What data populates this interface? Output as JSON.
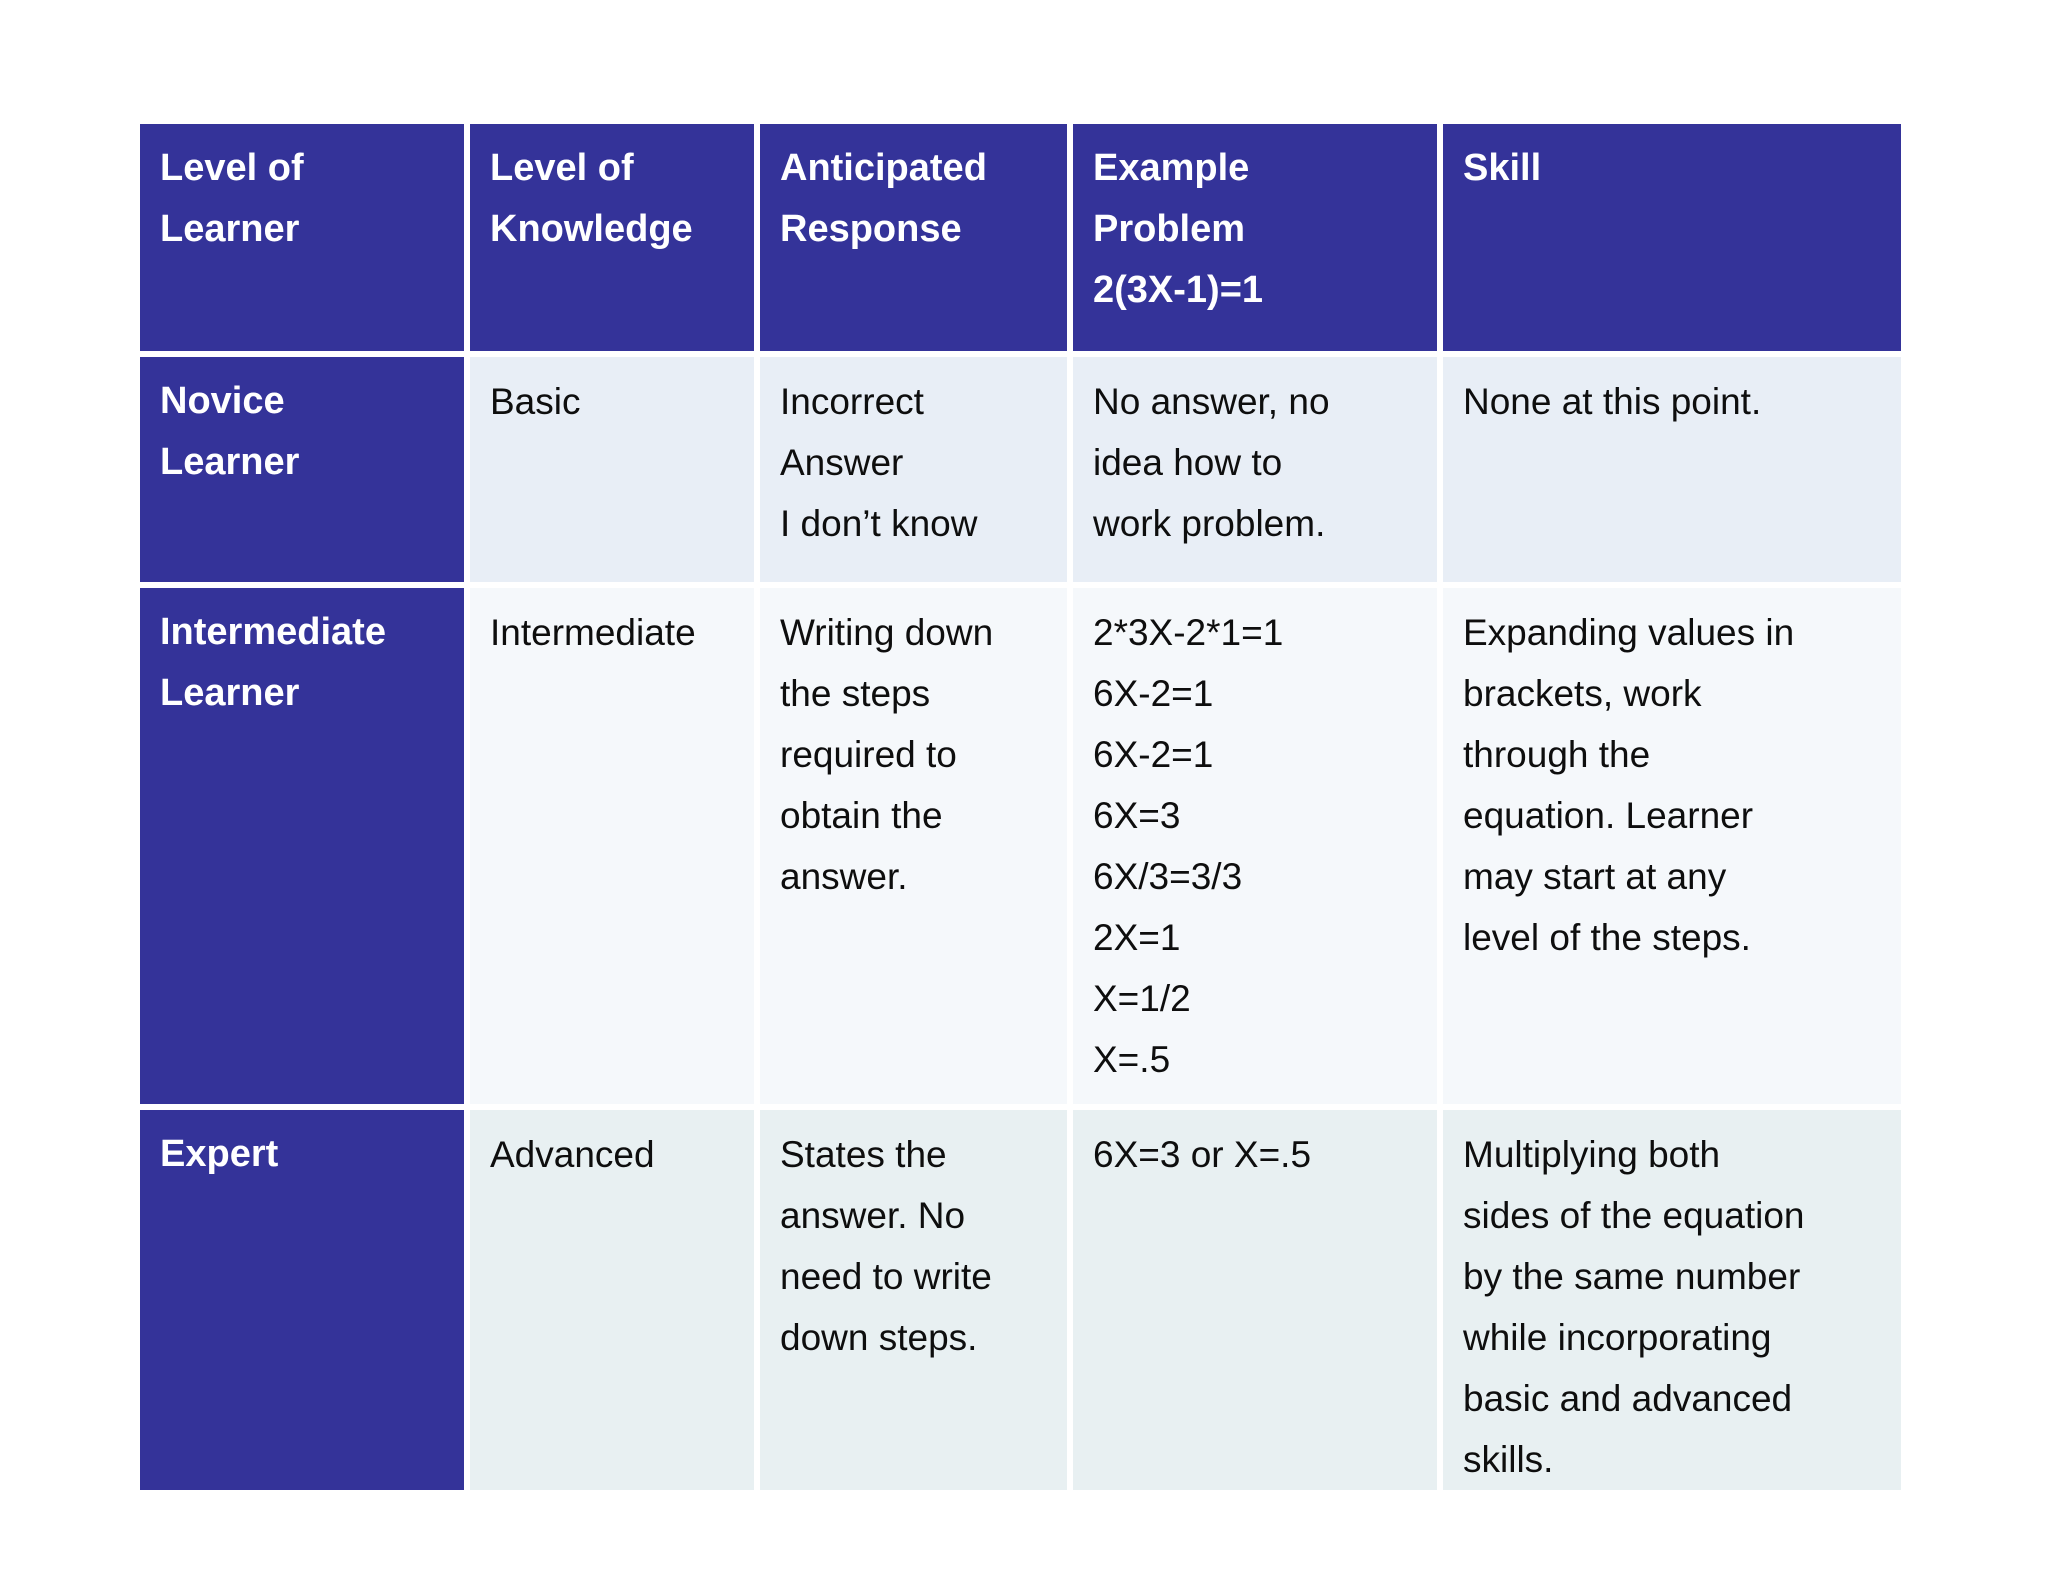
{
  "page": {
    "background_color": "#ffffff"
  },
  "table": {
    "accent_color": "#343399",
    "header_text_color": "#ffffff",
    "body_text_color": "#0e0e0e",
    "row_stripe_colors": [
      "#e8eef6",
      "#f5f8fb",
      "#e8f0f2"
    ],
    "headers": {
      "learner": "Level of\nLearner",
      "knowledge": "Level of\nKnowledge",
      "response": "Anticipated\nResponse",
      "example": "Example\nProblem\n2(3X-1)=1",
      "skill": "Skill"
    },
    "rows": [
      {
        "learner": "Novice\nLearner",
        "knowledge": "Basic",
        "response": "Incorrect\nAnswer\nI don’t know",
        "example": "No answer, no\nidea how to\nwork problem.",
        "skill": "None at this point."
      },
      {
        "learner": "Intermediate\nLearner",
        "knowledge": "Intermediate",
        "response": "Writing down\nthe steps\nrequired to\nobtain the\nanswer.",
        "example": "2*3X-2*1=1\n6X-2=1\n6X-2=1\n6X=3\n6X/3=3/3\n2X=1\nX=1/2\nX=.5",
        "skill": "Expanding values in\nbrackets, work\nthrough the\nequation. Learner\nmay start at any\nlevel of the steps."
      },
      {
        "learner": "Expert",
        "knowledge": "Advanced",
        "response": "States the\nanswer. No\nneed to write\ndown steps.",
        "example": "6X=3 or X=.5",
        "skill": "Multiplying both\nsides of the equation\nby the same number\nwhile incorporating\nbasic and advanced\nskills."
      }
    ]
  }
}
